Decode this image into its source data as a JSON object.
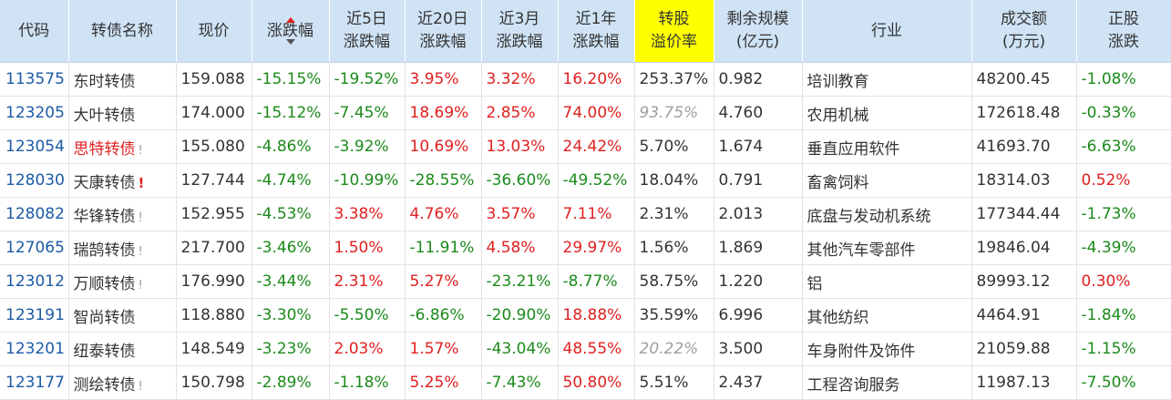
{
  "headers": {
    "code": "代码",
    "name": "转债名称",
    "price": "现价",
    "change": "涨跌幅",
    "d5_l1": "近5日",
    "d5_l2": "涨跌幅",
    "d20_l1": "近20日",
    "d20_l2": "涨跌幅",
    "m3_l1": "近3月",
    "m3_l2": "涨跌幅",
    "y1_l1": "近1年",
    "y1_l2": "涨跌幅",
    "prem_l1": "转股",
    "prem_l2": "溢价率",
    "scale_l1": "剩余规模",
    "scale_l2": "(亿元)",
    "industry": "行业",
    "volume_l1": "成交额",
    "volume_l2": "(万元)",
    "stock_l1": "正股",
    "stock_l2": "涨跌"
  },
  "colors": {
    "header_bg": "#cfe3f5",
    "highlight": "#ffff00",
    "up": "#e02020",
    "down": "#1b8a1b",
    "code": "#1c5aa6"
  },
  "rows": [
    {
      "code": "113575",
      "name": "东时转债",
      "flag": "",
      "price": "159.088",
      "chg": "-15.15%",
      "d5": "-19.52%",
      "d20": "3.95%",
      "m3": "3.32%",
      "y1": "16.20%",
      "prem": "253.37%",
      "scale": "0.982",
      "industry": "培训教育",
      "volume": "48200.45",
      "stock": "-1.08%"
    },
    {
      "code": "123205",
      "name": "大叶转债",
      "flag": "",
      "price": "174.000",
      "chg": "-15.12%",
      "d5": "-7.45%",
      "d20": "18.69%",
      "m3": "2.85%",
      "y1": "74.00%",
      "prem": "93.75%",
      "scale": "4.760",
      "industry": "农用机械",
      "volume": "172618.48",
      "stock": "-0.33%"
    },
    {
      "code": "123054",
      "name": "思特转债",
      "flag": "!",
      "price": "155.080",
      "chg": "-4.86%",
      "d5": "-3.92%",
      "d20": "10.69%",
      "m3": "13.03%",
      "y1": "24.42%",
      "prem": "5.70%",
      "scale": "1.674",
      "industry": "垂直应用软件",
      "volume": "41693.70",
      "stock": "-6.63%"
    },
    {
      "code": "128030",
      "name": "天康转债",
      "flag": "!",
      "price": "127.744",
      "chg": "-4.74%",
      "d5": "-10.99%",
      "d20": "-28.55%",
      "m3": "-36.60%",
      "y1": "-49.52%",
      "prem": "18.04%",
      "scale": "0.791",
      "industry": "畜禽饲料",
      "volume": "18314.03",
      "stock": "0.52%"
    },
    {
      "code": "128082",
      "name": "华锋转债",
      "flag": "!",
      "price": "152.955",
      "chg": "-4.53%",
      "d5": "3.38%",
      "d20": "4.76%",
      "m3": "3.57%",
      "y1": "7.11%",
      "prem": "2.31%",
      "scale": "2.013",
      "industry": "底盘与发动机系统",
      "volume": "177344.44",
      "stock": "-1.73%"
    },
    {
      "code": "127065",
      "name": "瑞鹄转债",
      "flag": "!",
      "price": "217.700",
      "chg": "-3.46%",
      "d5": "1.50%",
      "d20": "-11.91%",
      "m3": "4.58%",
      "y1": "29.97%",
      "prem": "1.56%",
      "scale": "1.869",
      "industry": "其他汽车零部件",
      "volume": "19846.04",
      "stock": "-4.39%"
    },
    {
      "code": "123012",
      "name": "万顺转债",
      "flag": "!",
      "price": "176.990",
      "chg": "-3.44%",
      "d5": "2.31%",
      "d20": "5.27%",
      "m3": "-23.21%",
      "y1": "-8.77%",
      "prem": "58.75%",
      "scale": "1.220",
      "industry": "铝",
      "volume": "89993.12",
      "stock": "0.30%"
    },
    {
      "code": "123191",
      "name": "智尚转债",
      "flag": "",
      "price": "118.880",
      "chg": "-3.30%",
      "d5": "-5.50%",
      "d20": "-6.86%",
      "m3": "-20.90%",
      "y1": "18.88%",
      "prem": "35.59%",
      "scale": "6.996",
      "industry": "其他纺织",
      "volume": "4464.91",
      "stock": "-1.84%"
    },
    {
      "code": "123201",
      "name": "纽泰转债",
      "flag": "",
      "price": "148.549",
      "chg": "-3.23%",
      "d5": "2.03%",
      "d20": "1.57%",
      "m3": "-43.04%",
      "y1": "48.55%",
      "prem": "20.22%",
      "scale": "3.500",
      "industry": "车身附件及饰件",
      "volume": "21059.88",
      "stock": "-1.15%"
    },
    {
      "code": "123177",
      "name": "测绘转债",
      "flag": "!",
      "price": "150.798",
      "chg": "-2.89%",
      "d5": "-1.18%",
      "d20": "5.25%",
      "m3": "-7.43%",
      "y1": "50.80%",
      "prem": "5.51%",
      "scale": "2.437",
      "industry": "工程咨询服务",
      "volume": "11987.13",
      "stock": "-7.50%"
    }
  ]
}
